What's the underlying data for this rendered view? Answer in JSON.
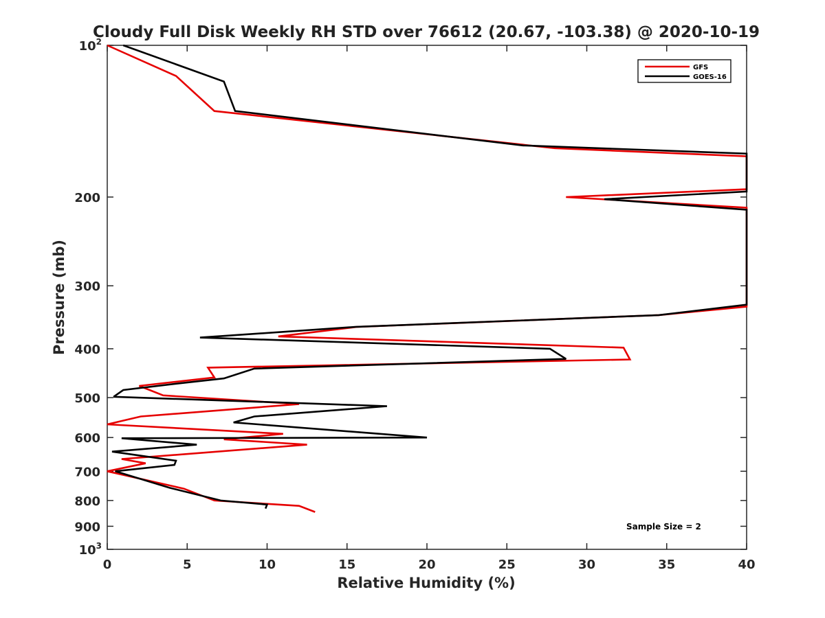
{
  "chart_data": {
    "type": "line",
    "title": "Cloudy Full Disk Weekly RH STD over 76612 (20.67, -103.38) @ 2020-10-19",
    "xlabel": "Relative Humidity (%)",
    "ylabel": "Pressure (mb)",
    "xlim": [
      0,
      40
    ],
    "ylim": [
      100,
      1000
    ],
    "yscale": "log",
    "yreversed": true,
    "grid": false,
    "legend_position": "top-right",
    "x_ticks": [
      "0",
      "5",
      "10",
      "15",
      "20",
      "25",
      "30",
      "35",
      "40"
    ],
    "y_ticks": [
      {
        "value": 100,
        "label": "10",
        "exp": "2"
      },
      {
        "value": 200,
        "label": "200"
      },
      {
        "value": 300,
        "label": "300"
      },
      {
        "value": 400,
        "label": "400"
      },
      {
        "value": 500,
        "label": "500"
      },
      {
        "value": 600,
        "label": "600"
      },
      {
        "value": 700,
        "label": "700"
      },
      {
        "value": 800,
        "label": "800"
      },
      {
        "value": 900,
        "label": "900"
      },
      {
        "value": 1000,
        "label": "10",
        "exp": "3"
      }
    ],
    "series": [
      {
        "name": "GFS",
        "color": "#e60000",
        "points": [
          [
            0.0,
            100
          ],
          [
            4.3,
            115
          ],
          [
            6.7,
            135
          ],
          [
            28.0,
            160
          ],
          [
            40.0,
            166
          ],
          [
            40.0,
            193
          ],
          [
            28.7,
            200
          ],
          [
            40.0,
            210
          ],
          [
            40.0,
            330
          ],
          [
            34.5,
            343
          ],
          [
            15.6,
            362
          ],
          [
            10.7,
            378
          ],
          [
            32.3,
            398
          ],
          [
            32.7,
            420
          ],
          [
            6.3,
            436
          ],
          [
            6.7,
            456
          ],
          [
            2.0,
            474
          ],
          [
            3.5,
            495
          ],
          [
            12.0,
            515
          ],
          [
            2.1,
            545
          ],
          [
            0.0,
            565
          ],
          [
            11.0,
            590
          ],
          [
            7.3,
            605
          ],
          [
            12.5,
            620
          ],
          [
            0.9,
            662
          ],
          [
            2.4,
            675
          ],
          [
            0.0,
            700
          ],
          [
            4.8,
            758
          ],
          [
            6.7,
            800
          ],
          [
            12.0,
            820
          ],
          [
            13.0,
            843
          ]
        ]
      },
      {
        "name": "GOES-16",
        "color": "#000000",
        "points": [
          [
            1.0,
            100
          ],
          [
            7.3,
            118
          ],
          [
            8.0,
            135
          ],
          [
            26.0,
            158
          ],
          [
            40.0,
            164
          ],
          [
            40.0,
            195
          ],
          [
            31.1,
            202
          ],
          [
            40.0,
            212
          ],
          [
            40.0,
            327
          ],
          [
            34.5,
            343
          ],
          [
            15.5,
            362
          ],
          [
            5.8,
            380
          ],
          [
            27.7,
            400
          ],
          [
            28.7,
            419
          ],
          [
            9.2,
            438
          ],
          [
            7.3,
            458
          ],
          [
            4.4,
            469
          ],
          [
            1.0,
            483
          ],
          [
            0.4,
            498
          ],
          [
            17.5,
            520
          ],
          [
            9.2,
            545
          ],
          [
            7.9,
            560
          ],
          [
            20.0,
            600
          ],
          [
            0.9,
            602
          ],
          [
            5.6,
            620
          ],
          [
            0.3,
            640
          ],
          [
            4.3,
            667
          ],
          [
            4.2,
            680
          ],
          [
            0.5,
            700
          ],
          [
            3.9,
            755
          ],
          [
            7.1,
            800
          ],
          [
            10.0,
            815
          ],
          [
            9.9,
            830
          ]
        ]
      }
    ],
    "annotations": [
      "Sample Size = 2"
    ]
  }
}
